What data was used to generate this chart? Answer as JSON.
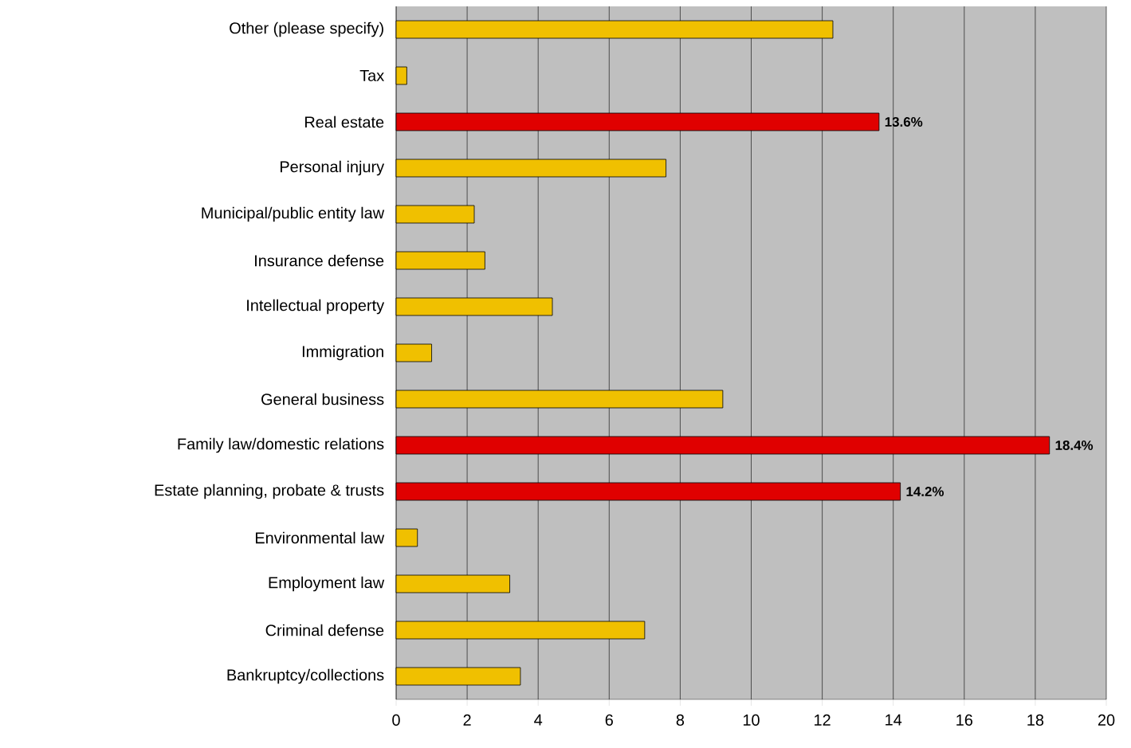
{
  "chart_data": {
    "type": "bar",
    "orientation": "horizontal",
    "categories": [
      "Other (please specify)",
      "Tax",
      "Real estate",
      "Personal injury",
      "Municipal/public entity law",
      "Insurance defense",
      "Intellectual property",
      "Immigration",
      "General business",
      "Family law/domestic relations",
      "Estate planning, probate & trusts",
      "Environmental law",
      "Employment law",
      "Criminal defense",
      "Bankruptcy/collections"
    ],
    "values": [
      12.3,
      0.3,
      13.6,
      7.6,
      2.2,
      2.5,
      4.4,
      1.0,
      9.2,
      18.4,
      14.2,
      0.6,
      3.2,
      7.0,
      3.5
    ],
    "colors": [
      "#f0c000",
      "#f0c000",
      "#e00000",
      "#f0c000",
      "#f0c000",
      "#f0c000",
      "#f0c000",
      "#f0c000",
      "#f0c000",
      "#e00000",
      "#e00000",
      "#f0c000",
      "#f0c000",
      "#f0c000",
      "#f0c000"
    ],
    "value_labels": [
      null,
      null,
      "13.6%",
      null,
      null,
      null,
      null,
      null,
      null,
      "18.4%",
      "14.2%",
      null,
      null,
      null,
      null
    ],
    "xlim": [
      0,
      20
    ],
    "xticks": [
      0,
      2,
      4,
      6,
      8,
      10,
      12,
      14,
      16,
      18,
      20
    ],
    "grid": "x"
  }
}
